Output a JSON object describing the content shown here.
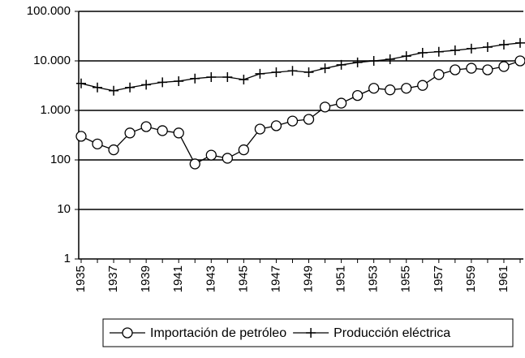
{
  "chart_data": {
    "type": "line",
    "categories": [
      "1935",
      null,
      "1937",
      null,
      "1939",
      null,
      "1941",
      null,
      "1943",
      null,
      "1945",
      null,
      "1947",
      null,
      "1949",
      null,
      "1951",
      null,
      "1953",
      null,
      "1955",
      null,
      "1957",
      null,
      "1959",
      null,
      "1961",
      null
    ],
    "series": [
      {
        "name": "Importación de petróleo",
        "color": "#000000",
        "marker": "circle",
        "values": [
          300,
          210,
          160,
          350,
          470,
          390,
          350,
          83,
          125,
          108,
          160,
          420,
          490,
          610,
          660,
          1170,
          1400,
          2000,
          2800,
          2600,
          2800,
          3200,
          5300,
          6600,
          7100,
          6600,
          7700,
          10000
        ]
      },
      {
        "name": "Producción eléctrica",
        "color": "#000000",
        "marker": "plus",
        "values": [
          3500,
          2900,
          2500,
          2900,
          3300,
          3700,
          3900,
          4400,
          4700,
          4700,
          4200,
          5500,
          5900,
          6300,
          5900,
          7100,
          8300,
          9300,
          10000,
          10800,
          12500,
          14600,
          15300,
          16300,
          17700,
          19000,
          21300,
          23000
        ]
      }
    ],
    "ylim": [
      1,
      100000
    ],
    "log_y": true,
    "yticks": [
      1,
      10,
      100,
      {
        "value": 1000,
        "label": "1.000"
      },
      {
        "value": 10000,
        "label": "10.000"
      },
      {
        "value": 100000,
        "label": "100.000"
      }
    ],
    "grid": true,
    "legend": "bottom"
  }
}
